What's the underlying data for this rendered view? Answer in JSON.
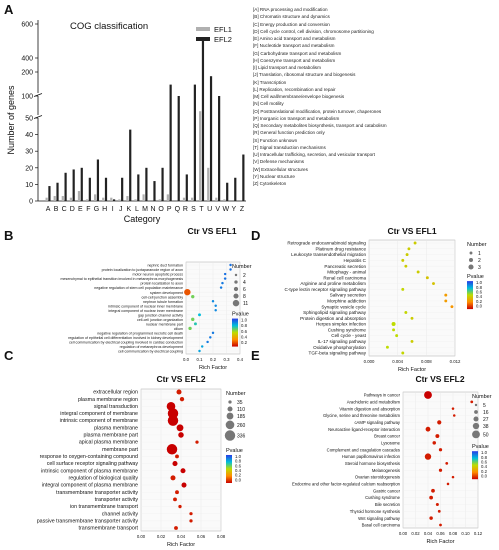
{
  "panels": {
    "A": {
      "letter": "A"
    },
    "B": {
      "letter": "B"
    },
    "C": {
      "letter": "C"
    },
    "D": {
      "letter": "D"
    },
    "E": {
      "letter": "E"
    }
  },
  "cog_legend": [
    "[A] RNA processing and modification",
    "[B] Chromatin structure and dynamics",
    "[C] Energy production and conversion",
    "[D] Cell cycle control, cell division, chromosome partitioning",
    "[E] Amino acid transport and metabolism",
    "[F] Nucleotide transport and metabolism",
    "[G] Carbohydrate transport and metabolism",
    "[H] Coenzyme transport and metabolism",
    "[I] Lipid transport and metabolism",
    "[J] Translation, ribosomal structure and biogenesis",
    "[K] Transcription",
    "[L] Replication, recombination and repair",
    "[M] Cell wall/membrane/envelope biogenesis",
    "[N] Cell motility",
    "[O] Posttranslational modification, protein turnover, chaperones",
    "[P] Inorganic ion transport and metabolism",
    "[Q] Secondary metabolites biosynthesis, transport and catabolism",
    "[R] General function prediction only",
    "[S] Function unknown",
    "[T] Signal transduction mechanisms",
    "[U] Intracellular trafficking, secretion, and vesicular transport",
    "[V] Defense mechanisms",
    "[W] Extracellular structures",
    "[Y] Nuclear structure",
    "[Z] Cytoskeleton"
  ],
  "chart_data": [
    {
      "id": "A",
      "type": "bar",
      "title": "COG classification",
      "xlabel": "Category",
      "ylabel": "Number of genes",
      "categories": [
        "A",
        "B",
        "C",
        "D",
        "E",
        "F",
        "G",
        "H",
        "I",
        "J",
        "K",
        "L",
        "M",
        "N",
        "O",
        "P",
        "Q",
        "R",
        "S",
        "T",
        "U",
        "V",
        "W",
        "Y",
        "Z"
      ],
      "series": [
        {
          "name": "EFL1",
          "color": "#b0b0b0",
          "values": [
            2,
            3,
            3,
            2,
            6,
            1,
            4,
            2,
            2,
            1,
            3,
            1,
            4,
            0,
            1,
            4,
            0,
            2,
            2,
            60,
            20,
            2,
            1,
            0,
            0
          ]
        },
        {
          "name": "EFL2",
          "color": "#222222",
          "values": [
            9,
            11,
            17,
            19,
            20,
            14,
            25,
            14,
            1,
            14,
            43,
            16,
            20,
            12,
            20,
            140,
            100,
            16,
            140,
            520,
            180,
            100,
            11,
            14,
            28
          ]
        }
      ],
      "broken_axis": true,
      "yticks": [
        "0",
        "10",
        "20",
        "30",
        "40",
        "50",
        "100",
        "200",
        "400",
        "600"
      ]
    },
    {
      "id": "B",
      "type": "scatter",
      "title": "Ctr VS EFL1",
      "xlabel": "Rich Factor",
      "xticks": [
        "0.0",
        "0.1",
        "0.2",
        "0.3",
        "0.4"
      ],
      "xlim": [
        0.0,
        0.4
      ],
      "size_legend_title": "Number",
      "size_legend": [
        "2",
        "4",
        "6",
        "8",
        "11"
      ],
      "color_legend_title": "Pvalue",
      "color_ticks": [
        "1.0",
        "0.8",
        "0.6",
        "0.4",
        "0.2"
      ],
      "terms": [
        {
          "label": "nephric duct formation",
          "x": 0.33,
          "n": 2,
          "p": 0.9
        },
        {
          "label": "protein localization to juxtaparanode region of axon",
          "x": 0.33,
          "n": 2,
          "p": 0.9
        },
        {
          "label": "motor neuron apoptotic process",
          "x": 0.29,
          "n": 2,
          "p": 0.9
        },
        {
          "label": "mesenchymal to epithelial transition involved in metanephros morphogenesis",
          "x": 0.29,
          "n": 2,
          "p": 0.9
        },
        {
          "label": "protein localization to axon",
          "x": 0.27,
          "n": 2,
          "p": 0.88
        },
        {
          "label": "negative regulation of stem cell population maintenance",
          "x": 0.26,
          "n": 2,
          "p": 0.88
        },
        {
          "label": "system development",
          "x": 0.01,
          "n": 11,
          "p": 0.15
        },
        {
          "label": "cell-cell junction assembly",
          "x": 0.05,
          "n": 4,
          "p": 0.6
        },
        {
          "label": "nephron tubule formation",
          "x": 0.2,
          "n": 2,
          "p": 0.85
        },
        {
          "label": "intrinsic component of nuclear inner membrane",
          "x": 0.22,
          "n": 2,
          "p": 0.85
        },
        {
          "label": "integral component of nuclear inner membrane",
          "x": 0.22,
          "n": 2,
          "p": 0.85
        },
        {
          "label": "gap junction channel activity",
          "x": 0.1,
          "n": 3,
          "p": 0.75
        },
        {
          "label": "cell-cell junction organization",
          "x": 0.05,
          "n": 4,
          "p": 0.6
        },
        {
          "label": "nuclear membrane part",
          "x": 0.07,
          "n": 3,
          "p": 0.7
        },
        {
          "label": "cilium",
          "x": 0.03,
          "n": 4,
          "p": 0.6
        },
        {
          "label": "negative regulation of programmed necrotic cell death",
          "x": 0.2,
          "n": 2,
          "p": 0.88
        },
        {
          "label": "regulation of epithelial cell differentiation involved in kidney development",
          "x": 0.18,
          "n": 2,
          "p": 0.88
        },
        {
          "label": "cell communication by electrical coupling involved in cardiac conduction",
          "x": 0.16,
          "n": 2,
          "p": 0.88
        },
        {
          "label": "regulation of metanephros development",
          "x": 0.12,
          "n": 2,
          "p": 0.8
        },
        {
          "label": "cell communication by electrical coupling",
          "x": 0.1,
          "n": 2,
          "p": 0.8
        }
      ]
    },
    {
      "id": "C",
      "type": "scatter",
      "title": "Ctr VS EFL2",
      "xlabel": "Rich Factor",
      "xticks": [
        "0.00",
        "0.02",
        "0.04",
        "0.06",
        "0.08"
      ],
      "xlim": [
        0.0,
        0.08
      ],
      "size_legend_title": "Number",
      "size_legend": [
        "35",
        "110",
        "185",
        "260",
        "336"
      ],
      "color_legend_title": "Pvalue",
      "color_ticks": [
        "1.0",
        "0.8",
        "0.6",
        "0.4",
        "0.2",
        "0.0"
      ],
      "terms": [
        {
          "label": "extracellular region",
          "x": 0.038,
          "n": 110,
          "p": 0.05
        },
        {
          "label": "plasma membrane region",
          "x": 0.041,
          "n": 80,
          "p": 0.05
        },
        {
          "label": "signal transduction",
          "x": 0.03,
          "n": 260,
          "p": 0.0
        },
        {
          "label": "integral component of membrane",
          "x": 0.032,
          "n": 336,
          "p": 0.0
        },
        {
          "label": "intrinsic component of membrane",
          "x": 0.032,
          "n": 336,
          "p": 0.0
        },
        {
          "label": "plasma membrane",
          "x": 0.039,
          "n": 185,
          "p": 0.0
        },
        {
          "label": "plasma membrane part",
          "x": 0.04,
          "n": 130,
          "p": 0.0
        },
        {
          "label": "apical plasma membrane",
          "x": 0.056,
          "n": 35,
          "p": 0.05
        },
        {
          "label": "membrane part",
          "x": 0.031,
          "n": 336,
          "p": 0.0
        },
        {
          "label": "response to oxygen-containing compound",
          "x": 0.036,
          "n": 60,
          "p": 0.05
        },
        {
          "label": "cell surface receptor signaling pathway",
          "x": 0.034,
          "n": 110,
          "p": 0.0
        },
        {
          "label": "intrinsic component of plasma membrane",
          "x": 0.042,
          "n": 110,
          "p": 0.0
        },
        {
          "label": "regulation of biological quality",
          "x": 0.032,
          "n": 110,
          "p": 0.05
        },
        {
          "label": "integral component of plasma membrane",
          "x": 0.043,
          "n": 110,
          "p": 0.0
        },
        {
          "label": "transmembrane transporter activity",
          "x": 0.036,
          "n": 60,
          "p": 0.05
        },
        {
          "label": "transporter activity",
          "x": 0.034,
          "n": 60,
          "p": 0.05
        },
        {
          "label": "ion transmembrane transport",
          "x": 0.039,
          "n": 40,
          "p": 0.05
        },
        {
          "label": "channel activity",
          "x": 0.05,
          "n": 35,
          "p": 0.05
        },
        {
          "label": "passive transmembrane transporter activity",
          "x": 0.05,
          "n": 35,
          "p": 0.05
        },
        {
          "label": "transmembrane transport",
          "x": 0.035,
          "n": 60,
          "p": 0.05
        }
      ]
    },
    {
      "id": "D",
      "type": "scatter",
      "title": "Ctr VS EFL1",
      "xlabel": "Rich Factor",
      "xticks": [
        "0.000",
        "0.004",
        "0.008",
        "0.012"
      ],
      "xlim": [
        0.0,
        0.014
      ],
      "size_legend_title": "Number",
      "size_legend": [
        "1",
        "2",
        "3"
      ],
      "color_legend_title": "Pvalue",
      "color_ticks": [
        "1.0",
        "0.8",
        "0.6",
        "0.4",
        "0.2",
        "0.0"
      ],
      "terms": [
        {
          "label": "Retrograde endocannabinoid signaling",
          "x": 0.0075,
          "n": 1,
          "p": 0.45
        },
        {
          "label": "Platinum drug resistance",
          "x": 0.0065,
          "n": 1,
          "p": 0.45
        },
        {
          "label": "Leukocyte transendothelial migration",
          "x": 0.0062,
          "n": 1,
          "p": 0.45
        },
        {
          "label": "Hepatitis C",
          "x": 0.0055,
          "n": 1,
          "p": 0.45
        },
        {
          "label": "Pancreatic secretion",
          "x": 0.006,
          "n": 1,
          "p": 0.45
        },
        {
          "label": "Mitophagy - animal",
          "x": 0.008,
          "n": 1,
          "p": 0.45
        },
        {
          "label": "Renal cell carcinoma",
          "x": 0.0095,
          "n": 1,
          "p": 0.42
        },
        {
          "label": "Arginine and proline metabolism",
          "x": 0.0105,
          "n": 1,
          "p": 0.42
        },
        {
          "label": "C-type lectin receptor signaling pathway",
          "x": 0.0055,
          "n": 1,
          "p": 0.48
        },
        {
          "label": "Salivary secretion",
          "x": 0.0125,
          "n": 1,
          "p": 0.3
        },
        {
          "label": "Morphine addiction",
          "x": 0.0125,
          "n": 1,
          "p": 0.3
        },
        {
          "label": "Synaptic vesicle cycle",
          "x": 0.0135,
          "n": 1,
          "p": 0.28
        },
        {
          "label": "Sphingolipid signaling pathway",
          "x": 0.006,
          "n": 1,
          "p": 0.48
        },
        {
          "label": "Protein digestion and absorption",
          "x": 0.007,
          "n": 1,
          "p": 0.45
        },
        {
          "label": "Herpes simplex infection",
          "x": 0.004,
          "n": 2,
          "p": 0.5
        },
        {
          "label": "Cushing syndrome",
          "x": 0.004,
          "n": 1,
          "p": 0.5
        },
        {
          "label": "Cell cycle - yeast",
          "x": 0.0045,
          "n": 1,
          "p": 0.5
        },
        {
          "label": "IL-17 signaling pathway",
          "x": 0.007,
          "n": 1,
          "p": 0.45
        },
        {
          "label": "Oxidative phosphorylation",
          "x": 0.003,
          "n": 1,
          "p": 0.5
        },
        {
          "label": "TGF-beta signaling pathway",
          "x": 0.0055,
          "n": 1,
          "p": 0.48
        }
      ]
    },
    {
      "id": "E",
      "type": "scatter",
      "title": "Ctr VS EFL2",
      "xlabel": "Rich Factor",
      "xticks": [
        "0.00",
        "0.02",
        "0.04",
        "0.06",
        "0.08",
        "0.10",
        "0.12"
      ],
      "xlim": [
        0.0,
        0.12
      ],
      "size_legend_title": "Number",
      "size_legend": [
        "5",
        "16",
        "27",
        "38",
        "50"
      ],
      "color_legend_title": "Pvalue",
      "color_ticks": [
        "1.0",
        "0.8",
        "0.6",
        "0.4",
        "0.2",
        "0.0"
      ],
      "terms": [
        {
          "label": "Pathways in cancer",
          "x": 0.04,
          "n": 50,
          "p": 0.0
        },
        {
          "label": "Arachidonic acid metabolism",
          "x": 0.11,
          "n": 8,
          "p": 0.05
        },
        {
          "label": "Vitamin digestion and absorption",
          "x": 0.08,
          "n": 6,
          "p": 0.05
        },
        {
          "label": "Glycine, serine and threonine metabolism",
          "x": 0.082,
          "n": 6,
          "p": 0.05
        },
        {
          "label": "cAMP signaling pathway",
          "x": 0.058,
          "n": 20,
          "p": 0.05
        },
        {
          "label": "Neuroactive ligand-receptor interaction",
          "x": 0.04,
          "n": 25,
          "p": 0.05
        },
        {
          "label": "Breast cancer",
          "x": 0.055,
          "n": 18,
          "p": 0.05
        },
        {
          "label": "Lysosome",
          "x": 0.05,
          "n": 14,
          "p": 0.05
        },
        {
          "label": "Complement and coagulation cascades",
          "x": 0.06,
          "n": 12,
          "p": 0.05
        },
        {
          "label": "Human papillomavirus infection",
          "x": 0.04,
          "n": 38,
          "p": 0.05
        },
        {
          "label": "Steroid hormone biosynthesis",
          "x": 0.07,
          "n": 8,
          "p": 0.05
        },
        {
          "label": "Melanogenesis",
          "x": 0.06,
          "n": 12,
          "p": 0.05
        },
        {
          "label": "Ovarian steroidogenesis",
          "x": 0.08,
          "n": 6,
          "p": 0.05
        },
        {
          "label": "Endocrine and other factor-regulated calcium reabsorption",
          "x": 0.072,
          "n": 6,
          "p": 0.05
        },
        {
          "label": "Gastric cancer",
          "x": 0.048,
          "n": 16,
          "p": 0.05
        },
        {
          "label": "Cushing syndrome",
          "x": 0.045,
          "n": 16,
          "p": 0.05
        },
        {
          "label": "Bile secretion",
          "x": 0.055,
          "n": 10,
          "p": 0.05
        },
        {
          "label": "Thyroid hormone synthesis",
          "x": 0.058,
          "n": 8,
          "p": 0.05
        },
        {
          "label": "Wnt signaling pathway",
          "x": 0.045,
          "n": 14,
          "p": 0.05
        },
        {
          "label": "Basal cell carcinoma",
          "x": 0.06,
          "n": 8,
          "p": 0.05
        }
      ]
    }
  ]
}
